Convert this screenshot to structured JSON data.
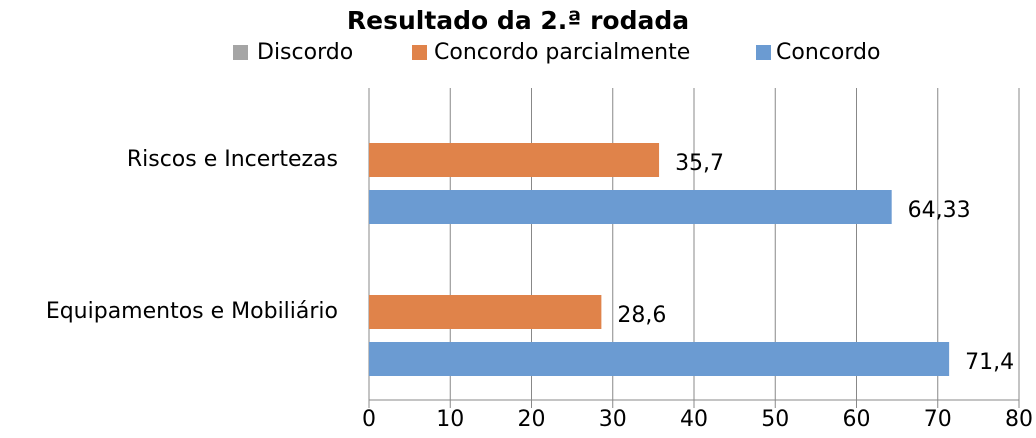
{
  "chart_data": {
    "type": "hbar",
    "title": "Resultado da 2.ª rodada",
    "categories": [
      "Riscos e Incertezas",
      "Equipamentos e Mobiliário"
    ],
    "series": [
      {
        "name": "Discordo",
        "color": "#a5a5a5",
        "values": [
          0,
          0
        ]
      },
      {
        "name": "Concordo parcialmente",
        "color": "#e0834a",
        "values": [
          35.7,
          28.6
        ],
        "value_labels": [
          "35,7",
          "28,6"
        ]
      },
      {
        "name": "Concordo",
        "color": "#6b9bd2",
        "values": [
          64.33,
          71.4
        ],
        "value_labels": [
          "64,33",
          "71,4"
        ]
      }
    ],
    "xlim": [
      0,
      80
    ],
    "xticks": [
      0,
      10,
      20,
      30,
      40,
      50,
      60,
      70,
      80
    ],
    "grid": true
  }
}
